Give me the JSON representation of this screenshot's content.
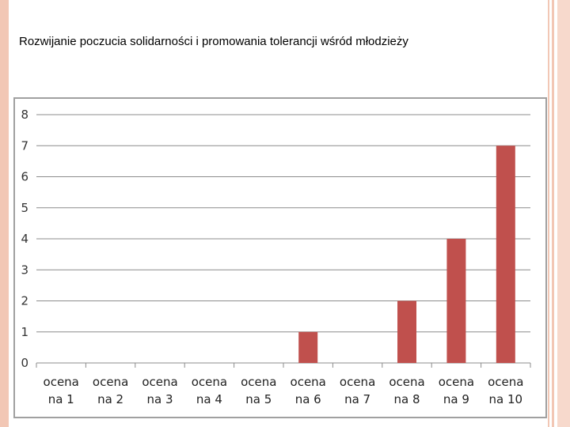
{
  "slide": {
    "title": "Rozwijanie poczucia solidarności i promowania tolerancji wśród młodzieży"
  },
  "colors": {
    "bar": "#c0504d",
    "grid": "#8c8c8c",
    "frame": "#a0a0a0",
    "accent_stripe": "#f2c7b5"
  },
  "chart_data": {
    "type": "bar",
    "title": "",
    "xlabel": "",
    "ylabel": "",
    "categories": [
      [
        "ocena",
        "na 1"
      ],
      [
        "ocena",
        "na 2"
      ],
      [
        "ocena",
        "na 3"
      ],
      [
        "ocena",
        "na 4"
      ],
      [
        "ocena",
        "na 5"
      ],
      [
        "ocena",
        "na 6"
      ],
      [
        "ocena",
        "na 7"
      ],
      [
        "ocena",
        "na 8"
      ],
      [
        "ocena",
        "na 9"
      ],
      [
        "ocena",
        "na 10"
      ]
    ],
    "values": [
      0,
      0,
      0,
      0,
      0,
      1,
      0,
      2,
      4,
      7
    ],
    "ylim": [
      0,
      8
    ],
    "yticks": [
      0,
      1,
      2,
      3,
      4,
      5,
      6,
      7,
      8
    ],
    "grid": true,
    "legend": "none"
  }
}
